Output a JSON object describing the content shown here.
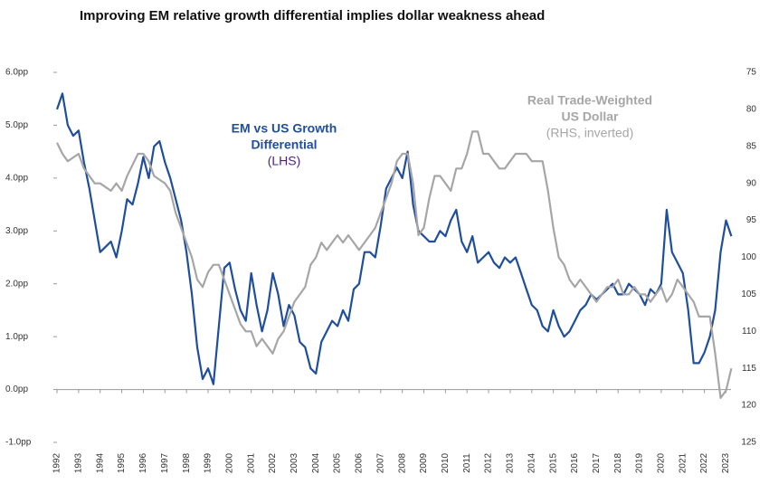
{
  "chart_data": {
    "type": "line",
    "title": "Improving EM relative growth differential implies dollar weakness ahead",
    "annotations": [
      {
        "lines": [
          "EM vs US Growth",
          "Differential"
        ],
        "note": "(LHS)",
        "color": "#1f4e9c",
        "note_color": "#4b1e8c"
      },
      {
        "lines": [
          "Real Trade-Weighted",
          "US Dollar"
        ],
        "note": "(RHS, inverted)",
        "color": "#a6a6a6",
        "note_color": "#a6a6a6"
      }
    ],
    "x": [
      1992,
      1992.25,
      1992.5,
      1992.75,
      1993,
      1993.25,
      1993.5,
      1993.75,
      1994,
      1994.25,
      1994.5,
      1994.75,
      1995,
      1995.25,
      1995.5,
      1995.75,
      1996,
      1996.25,
      1996.5,
      1996.75,
      1997,
      1997.25,
      1997.5,
      1997.75,
      1998,
      1998.25,
      1998.5,
      1998.75,
      1999,
      1999.25,
      1999.5,
      1999.75,
      2000,
      2000.25,
      2000.5,
      2000.75,
      2001,
      2001.25,
      2001.5,
      2001.75,
      2002,
      2002.25,
      2002.5,
      2002.75,
      2003,
      2003.25,
      2003.5,
      2003.75,
      2004,
      2004.25,
      2004.5,
      2004.75,
      2005,
      2005.25,
      2005.5,
      2005.75,
      2006,
      2006.25,
      2006.5,
      2006.75,
      2007,
      2007.25,
      2007.5,
      2007.75,
      2008,
      2008.25,
      2008.5,
      2008.75,
      2009,
      2009.25,
      2009.5,
      2009.75,
      2010,
      2010.25,
      2010.5,
      2010.75,
      2011,
      2011.25,
      2011.5,
      2011.75,
      2012,
      2012.25,
      2012.5,
      2012.75,
      2013,
      2013.25,
      2013.5,
      2013.75,
      2014,
      2014.25,
      2014.5,
      2014.75,
      2015,
      2015.25,
      2015.5,
      2015.75,
      2016,
      2016.25,
      2016.5,
      2016.75,
      2017,
      2017.25,
      2017.5,
      2017.75,
      2018,
      2018.25,
      2018.5,
      2018.75,
      2019,
      2019.25,
      2019.5,
      2019.75,
      2020,
      2020.25,
      2020.5,
      2020.75,
      2021,
      2021.25,
      2021.5,
      2021.75,
      2022,
      2022.25,
      2022.5,
      2022.75,
      2023,
      2023.25
    ],
    "series": [
      {
        "name": "EM vs US Growth Differential",
        "color": "#1f4e9c",
        "axis": "y",
        "values": [
          5.3,
          5.6,
          5.0,
          4.8,
          4.9,
          4.3,
          3.8,
          3.2,
          2.6,
          2.7,
          2.8,
          2.5,
          3.0,
          3.6,
          3.5,
          3.9,
          4.4,
          4.0,
          4.6,
          4.7,
          4.3,
          4.0,
          3.6,
          3.2,
          2.6,
          1.8,
          0.8,
          0.2,
          0.4,
          0.1,
          1.2,
          2.3,
          2.4,
          1.9,
          1.5,
          1.3,
          2.2,
          1.6,
          1.1,
          1.5,
          2.2,
          1.8,
          1.2,
          1.6,
          1.4,
          0.9,
          0.8,
          0.4,
          0.3,
          0.9,
          1.1,
          1.3,
          1.2,
          1.5,
          1.3,
          1.9,
          2.0,
          2.6,
          2.6,
          2.5,
          3.1,
          3.8,
          4.0,
          4.2,
          4.0,
          4.5,
          3.5,
          3.0,
          2.9,
          2.8,
          2.8,
          3.0,
          2.9,
          3.2,
          3.4,
          2.8,
          2.6,
          2.9,
          2.4,
          2.5,
          2.6,
          2.4,
          2.3,
          2.5,
          2.4,
          2.5,
          2.2,
          1.9,
          1.6,
          1.5,
          1.2,
          1.1,
          1.5,
          1.2,
          1.0,
          1.1,
          1.3,
          1.5,
          1.6,
          1.8,
          1.7,
          1.8,
          1.9,
          2.0,
          1.8,
          1.8,
          2.0,
          1.9,
          1.8,
          1.6,
          1.9,
          1.8,
          2.0,
          3.4,
          2.6,
          2.4,
          2.2,
          1.5,
          0.5,
          0.5,
          0.7,
          1.0,
          1.5,
          2.6,
          3.2,
          2.9
        ]
      },
      {
        "name": "Real Trade-Weighted US Dollar",
        "color": "#a6a6a6",
        "axis": "y2",
        "values": [
          84.5,
          86,
          87,
          86.5,
          86,
          88,
          89,
          90,
          90,
          90.5,
          91,
          90,
          91,
          89,
          87.5,
          86,
          86,
          87,
          89,
          89.5,
          90,
          91,
          94,
          96,
          98,
          100,
          103,
          104,
          102,
          101,
          101,
          103,
          105,
          107,
          109,
          110,
          110,
          112,
          111,
          112,
          113,
          111,
          110,
          108,
          106,
          105,
          104,
          101,
          100,
          98,
          99,
          98,
          97,
          98,
          97,
          98,
          99,
          98,
          97,
          96,
          94,
          92,
          90,
          87,
          86,
          86,
          90,
          97,
          96,
          92,
          89,
          89,
          90,
          91,
          88,
          88,
          86,
          83,
          83,
          86,
          86,
          87,
          88,
          88,
          87,
          86,
          86,
          86,
          87,
          87,
          87,
          91,
          96,
          100,
          101,
          103,
          104,
          103,
          104,
          105,
          106,
          105,
          104,
          104,
          103,
          105,
          105,
          104,
          105,
          105,
          106,
          105,
          104,
          106,
          105,
          103,
          104,
          105,
          106,
          108,
          108,
          108,
          113,
          119,
          118,
          115
        ]
      }
    ],
    "xlim": [
      1992,
      2023.4
    ],
    "xticks": [
      1992,
      1993,
      1994,
      1995,
      1996,
      1997,
      1998,
      1999,
      2000,
      2001,
      2002,
      2003,
      2004,
      2005,
      2006,
      2007,
      2008,
      2009,
      2010,
      2011,
      2012,
      2013,
      2014,
      2015,
      2016,
      2017,
      2018,
      2019,
      2020,
      2021,
      2022,
      2023
    ],
    "ylim": [
      -1,
      6
    ],
    "yticks": [
      {
        "value": -1,
        "label": "-1.0pp"
      },
      {
        "value": 0,
        "label": "0.0pp"
      },
      {
        "value": 1,
        "label": "1.0pp"
      },
      {
        "value": 2,
        "label": "2.0pp"
      },
      {
        "value": 3,
        "label": "3.0pp"
      },
      {
        "value": 4,
        "label": "4.0pp"
      },
      {
        "value": 5,
        "label": "5.0pp"
      },
      {
        "value": 6,
        "label": "6.0pp"
      }
    ],
    "y2lim": [
      75,
      125
    ],
    "y2_inverted": true,
    "y2ticks": [
      75,
      80,
      85,
      90,
      95,
      100,
      105,
      110,
      115,
      120,
      125
    ],
    "grid": false
  }
}
